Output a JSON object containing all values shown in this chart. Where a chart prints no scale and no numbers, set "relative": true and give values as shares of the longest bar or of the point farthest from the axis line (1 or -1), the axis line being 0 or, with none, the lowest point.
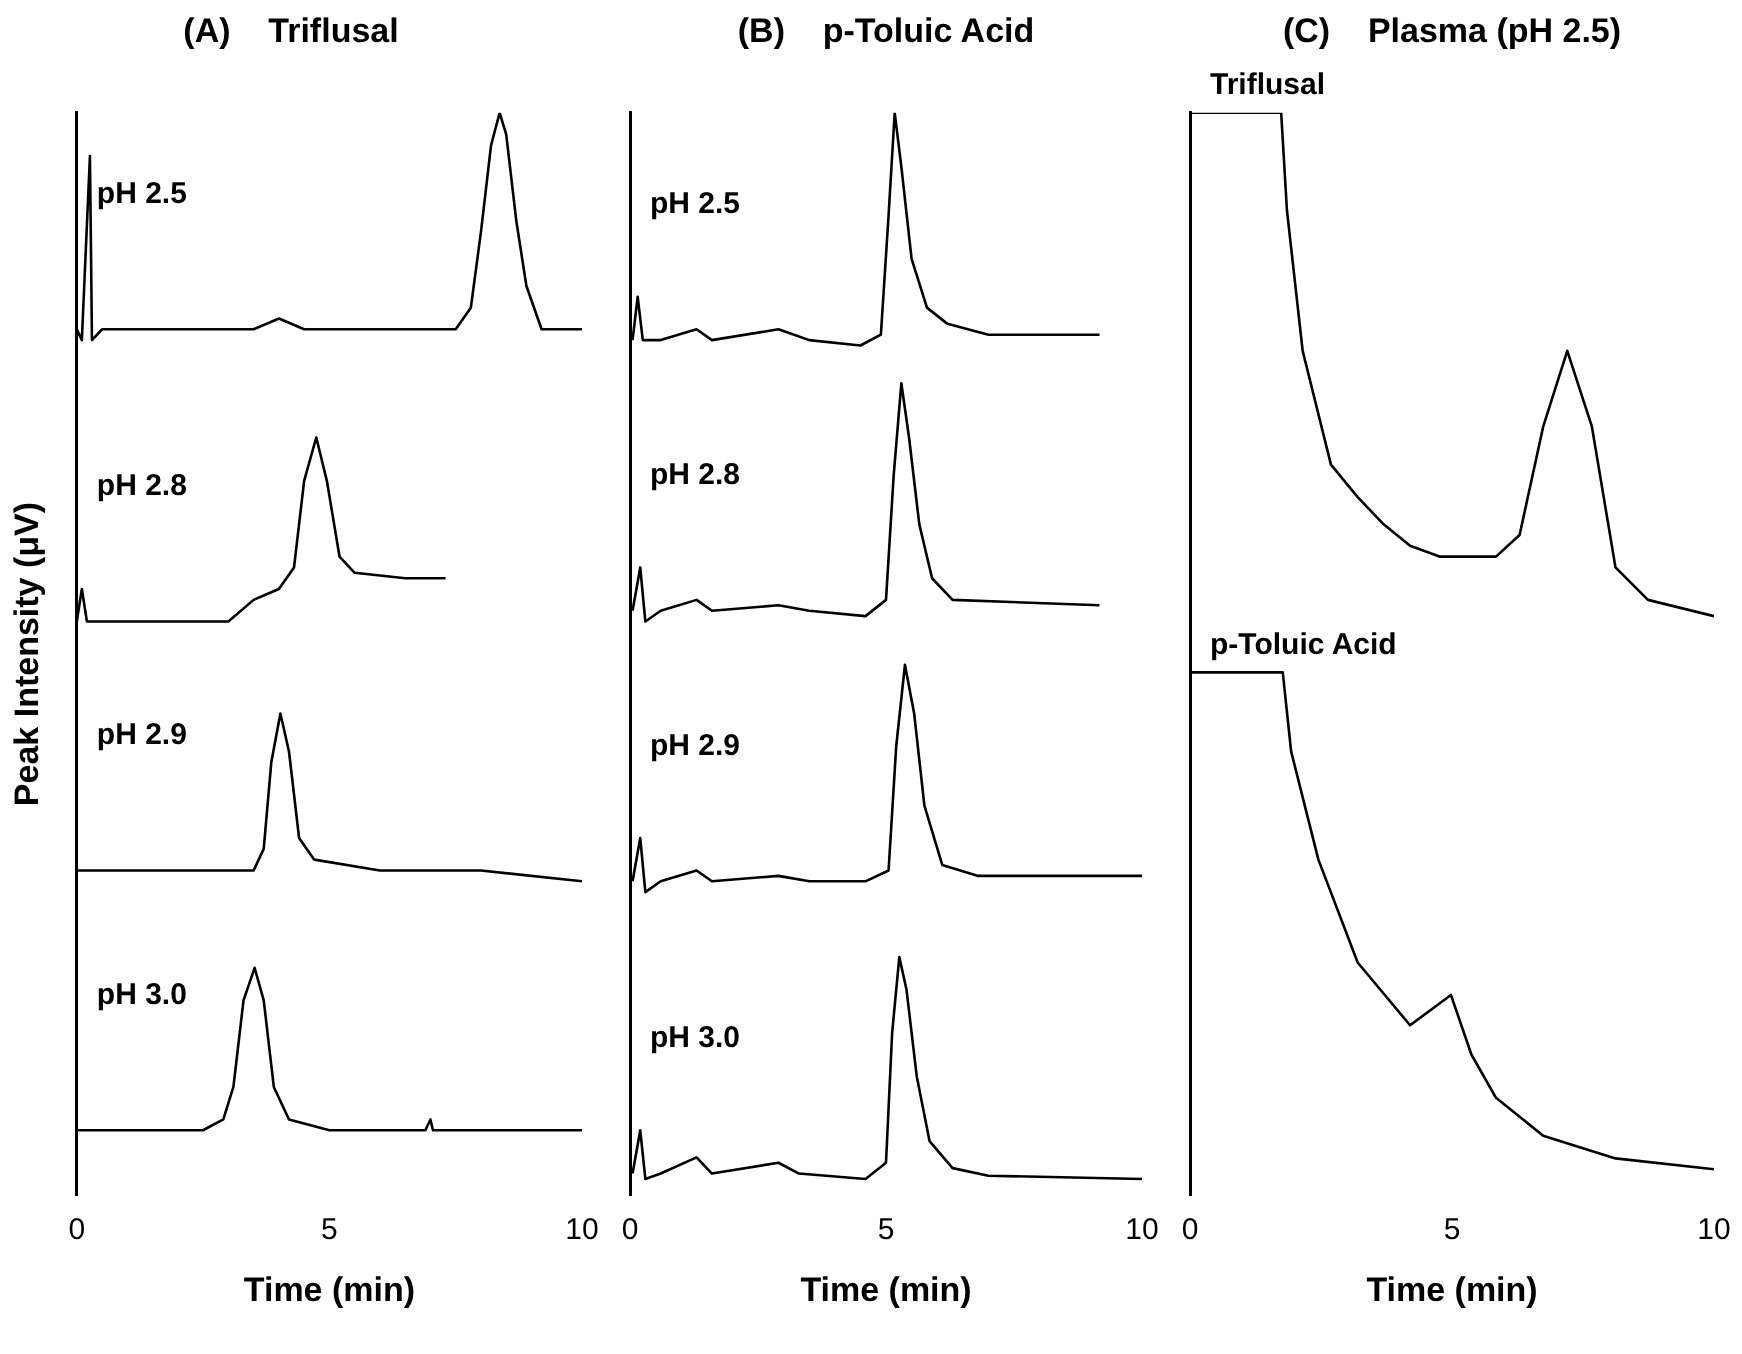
{
  "chart_data": [
    {
      "type": "line",
      "title": "(A)    Triflusal",
      "xlabel": "Time (min)",
      "ylabel": "Peak Intensity (μV)",
      "xlim": [
        0,
        10
      ],
      "xticks": [
        0,
        5,
        10
      ],
      "relative": true,
      "series": [
        {
          "name": "pH 2.5",
          "color": "#000000",
          "x": [
            0,
            0.1,
            0.26,
            0.3,
            0.5,
            1,
            2,
            3.5,
            4.0,
            4.5,
            6,
            7.5,
            7.8,
            8.0,
            8.2,
            8.37,
            8.5,
            8.7,
            8.9,
            9.2,
            10
          ],
          "values": [
            0.8,
            0.79,
            0.96,
            0.79,
            0.8,
            0.8,
            0.8,
            0.8,
            0.81,
            0.8,
            0.8,
            0.8,
            0.82,
            0.89,
            0.97,
            1.0,
            0.98,
            0.9,
            0.84,
            0.8,
            0.8
          ]
        },
        {
          "name": "pH 2.8",
          "color": "#000000",
          "x": [
            0,
            0.1,
            0.2,
            1,
            2,
            3,
            3.5,
            4.0,
            4.3,
            4.5,
            4.74,
            4.95,
            5.2,
            5.5,
            6.5,
            7.3
          ],
          "values": [
            0.53,
            0.56,
            0.53,
            0.53,
            0.53,
            0.53,
            0.55,
            0.56,
            0.58,
            0.66,
            0.7,
            0.66,
            0.59,
            0.575,
            0.57,
            0.57
          ]
        },
        {
          "name": "pH 2.9",
          "color": "#000000",
          "x": [
            0,
            0.1,
            1,
            2,
            3.5,
            3.7,
            3.85,
            4.03,
            4.2,
            4.4,
            4.7,
            6,
            8,
            10
          ],
          "values": [
            0.3,
            0.3,
            0.3,
            0.3,
            0.3,
            0.32,
            0.4,
            0.445,
            0.41,
            0.33,
            0.31,
            0.3,
            0.3,
            0.29
          ]
        },
        {
          "name": "pH 3.0",
          "color": "#000000",
          "x": [
            0,
            1,
            2.5,
            2.9,
            3.1,
            3.3,
            3.52,
            3.7,
            3.9,
            4.2,
            5,
            6.9,
            7.0,
            7.05,
            10
          ],
          "values": [
            0.06,
            0.06,
            0.06,
            0.07,
            0.1,
            0.18,
            0.21,
            0.18,
            0.1,
            0.07,
            0.06,
            0.06,
            0.07,
            0.06,
            0.06
          ]
        }
      ]
    },
    {
      "type": "line",
      "title": "(B)    p-Toluic Acid",
      "xlabel": "Time (min)",
      "xlim": [
        0,
        10
      ],
      "xticks": [
        0,
        5,
        10
      ],
      "relative": true,
      "series": [
        {
          "name": "pH 2.5",
          "color": "#000000",
          "x": [
            0.05,
            0.15,
            0.25,
            0.6,
            1.3,
            1.6,
            2.9,
            3.5,
            4.5,
            4.9,
            5.05,
            5.17,
            5.3,
            5.5,
            5.8,
            6.2,
            7,
            9.17
          ],
          "values": [
            0.79,
            0.83,
            0.79,
            0.79,
            0.8,
            0.79,
            0.8,
            0.79,
            0.785,
            0.795,
            0.905,
            1.0,
            0.95,
            0.865,
            0.82,
            0.805,
            0.795,
            0.795
          ]
        },
        {
          "name": "pH 2.8",
          "color": "#000000",
          "x": [
            0.05,
            0.2,
            0.3,
            0.6,
            1.3,
            1.6,
            2.9,
            3.5,
            4.6,
            5.0,
            5.15,
            5.3,
            5.45,
            5.65,
            5.9,
            6.3,
            9.17
          ],
          "values": [
            0.54,
            0.58,
            0.53,
            0.54,
            0.55,
            0.54,
            0.545,
            0.54,
            0.535,
            0.55,
            0.665,
            0.75,
            0.7,
            0.62,
            0.57,
            0.55,
            0.545
          ]
        },
        {
          "name": "pH 2.9",
          "color": "#000000",
          "x": [
            0.05,
            0.2,
            0.3,
            0.6,
            1.3,
            1.6,
            2.9,
            3.5,
            4.6,
            5.05,
            5.2,
            5.37,
            5.55,
            5.75,
            6.1,
            6.8,
            10
          ],
          "values": [
            0.29,
            0.33,
            0.28,
            0.29,
            0.3,
            0.29,
            0.295,
            0.29,
            0.29,
            0.3,
            0.415,
            0.49,
            0.445,
            0.36,
            0.305,
            0.295,
            0.295
          ]
        },
        {
          "name": "pH 3.0",
          "color": "#000000",
          "x": [
            0.05,
            0.2,
            0.3,
            0.6,
            1.3,
            1.6,
            2.9,
            3.3,
            4.6,
            5.0,
            5.12,
            5.26,
            5.4,
            5.6,
            5.85,
            6.3,
            7,
            10
          ],
          "values": [
            0.02,
            0.06,
            0.015,
            0.02,
            0.035,
            0.02,
            0.03,
            0.02,
            0.015,
            0.03,
            0.15,
            0.22,
            0.19,
            0.11,
            0.05,
            0.025,
            0.018,
            0.015
          ]
        }
      ]
    },
    {
      "type": "line",
      "title": "(C)    Plasma (pH 2.5)",
      "xlabel": "Time (min)",
      "xlim": [
        0,
        10
      ],
      "xticks": [
        0,
        5,
        10
      ],
      "relative": true,
      "series": [
        {
          "name": "Triflusal",
          "color": "#000000",
          "x": [
            0,
            1.74,
            1.85,
            2.15,
            2.69,
            3.2,
            3.69,
            4.2,
            4.76,
            5.84,
            6.29,
            6.74,
            7.2,
            7.67,
            8.12,
            8.74,
            10
          ],
          "values": [
            1,
            1,
            0.91,
            0.78,
            0.675,
            0.645,
            0.62,
            0.6,
            0.59,
            0.59,
            0.61,
            0.71,
            0.78,
            0.71,
            0.58,
            0.55,
            0.535
          ]
        },
        {
          "name": "p-Toluic Acid",
          "color": "#000000",
          "x": [
            0,
            1.77,
            1.93,
            2.45,
            3.2,
            4.2,
            4.98,
            5.37,
            5.84,
            6.74,
            8.12,
            10
          ],
          "values": [
            0.483,
            0.483,
            0.41,
            0.31,
            0.215,
            0.157,
            0.185,
            0.13,
            0.09,
            0.055,
            0.034,
            0.024
          ]
        }
      ]
    }
  ]
}
